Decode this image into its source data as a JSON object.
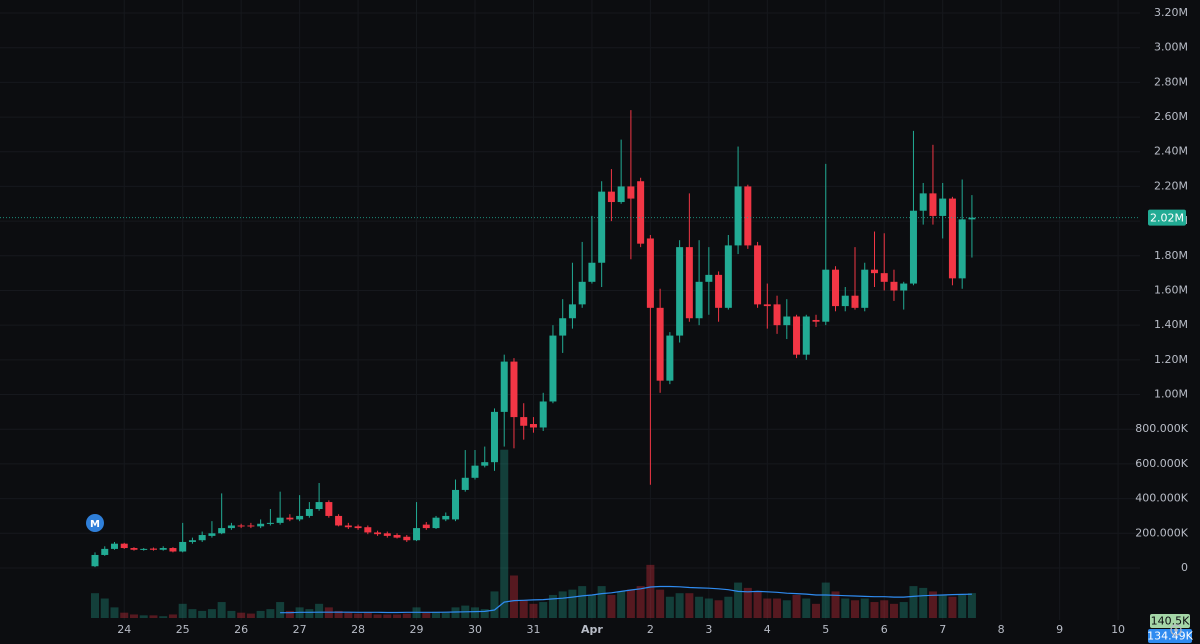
{
  "chart_data": {
    "type": "candlestick",
    "marker_label": "M",
    "up_color": "#22ab94",
    "down_color": "#f23645",
    "volume_up_color": "rgba(34,171,148,0.32)",
    "volume_down_color": "rgba(242,54,69,0.32)",
    "ma_color": "#2f8bf0",
    "grid": true,
    "xlim": [
      -51,
      417
    ],
    "ylim": [
      -300000,
      3275000
    ],
    "volume_ylim": [
      0,
      3500000
    ],
    "xticks": [
      {
        "value": 0,
        "label": "24"
      },
      {
        "value": 24,
        "label": "25"
      },
      {
        "value": 48,
        "label": "26"
      },
      {
        "value": 72,
        "label": "27"
      },
      {
        "value": 96,
        "label": "28"
      },
      {
        "value": 120,
        "label": "29"
      },
      {
        "value": 144,
        "label": "30"
      },
      {
        "value": 168,
        "label": "31"
      },
      {
        "value": 192,
        "label": "Apr"
      },
      {
        "value": 216,
        "label": "2"
      },
      {
        "value": 240,
        "label": "3"
      },
      {
        "value": 264,
        "label": "4"
      },
      {
        "value": 288,
        "label": "5"
      },
      {
        "value": 312,
        "label": "6"
      },
      {
        "value": 336,
        "label": "7"
      },
      {
        "value": 360,
        "label": "8"
      },
      {
        "value": 384,
        "label": "9"
      },
      {
        "value": 408,
        "label": "10"
      }
    ],
    "yticks": [
      0,
      {
        "value": 200000,
        "label": "200.000K"
      },
      {
        "value": 400000,
        "label": "400.000K"
      },
      {
        "value": 600000,
        "label": "600.000K"
      },
      {
        "value": 800000,
        "label": "800.000K"
      },
      {
        "value": 1000000,
        "label": "1.00M"
      },
      {
        "value": 1200000,
        "label": "1.20M"
      },
      {
        "value": 1400000,
        "label": "1.40M"
      },
      {
        "value": 1600000,
        "label": "1.60M"
      },
      {
        "value": 1800000,
        "label": "1.80M"
      },
      {
        "value": 2000000,
        "label": "2.00M"
      },
      {
        "value": 2200000,
        "label": "2.20M"
      },
      {
        "value": 2400000,
        "label": "2.40M"
      },
      {
        "value": 2600000,
        "label": "2.60M"
      },
      {
        "value": 2800000,
        "label": "2.80M"
      },
      {
        "value": 3000000,
        "label": "3.00M"
      },
      {
        "value": 3200000,
        "label": "3.20M"
      }
    ],
    "last_price": {
      "value": 2020000,
      "label": "2.02M"
    },
    "last_volume": {
      "value": 140500,
      "label": "140.5K"
    },
    "last_volume_ma": {
      "value": 134490,
      "label": "134.49K"
    },
    "x": [
      -12,
      -8,
      -4,
      0,
      4,
      8,
      12,
      16,
      20,
      24,
      28,
      32,
      36,
      40,
      44,
      48,
      52,
      56,
      60,
      64,
      68,
      72,
      76,
      80,
      84,
      88,
      92,
      96,
      100,
      104,
      108,
      112,
      116,
      120,
      124,
      128,
      132,
      136,
      140,
      144,
      148,
      152,
      156,
      160,
      164,
      168,
      172,
      176,
      180,
      184,
      188,
      192,
      196,
      200,
      204,
      208,
      212,
      216,
      220,
      224,
      228,
      232,
      236,
      240,
      244,
      248,
      252,
      256,
      260,
      264,
      268,
      272,
      276,
      280,
      284,
      288,
      292,
      296,
      300,
      304,
      308,
      312,
      316,
      320,
      324,
      328,
      332,
      336,
      340,
      344,
      348
    ],
    "open": [
      10000,
      75000,
      110000,
      140000,
      115000,
      105000,
      112000,
      105000,
      115000,
      95000,
      150000,
      160000,
      185000,
      200000,
      230000,
      245000,
      245000,
      240000,
      255000,
      260000,
      290000,
      280000,
      300000,
      340000,
      380000,
      300000,
      245000,
      240000,
      235000,
      205000,
      200000,
      190000,
      180000,
      160000,
      250000,
      230000,
      280000,
      280000,
      450000,
      520000,
      590000,
      610000,
      900000,
      1190000,
      870000,
      830000,
      810000,
      960000,
      1340000,
      1440000,
      1520000,
      1650000,
      1760000,
      2170000,
      2110000,
      2200000,
      2230000,
      1900000,
      1500000,
      1080000,
      1340000,
      1850000,
      1440000,
      1650000,
      1690000,
      1500000,
      1860000,
      2200000,
      1860000,
      1520000,
      1520000,
      1400000,
      1450000,
      1230000,
      1430000,
      1420000,
      1720000,
      1510000,
      1570000,
      1500000,
      1720000,
      1700000,
      1650000,
      1600000,
      1640000,
      2060000,
      2160000,
      2030000,
      2130000,
      1670000,
      2010000
    ],
    "high": [
      90000,
      125000,
      150000,
      145000,
      120000,
      115000,
      118000,
      125000,
      120000,
      260000,
      175000,
      210000,
      270000,
      430000,
      260000,
      255000,
      260000,
      280000,
      340000,
      440000,
      310000,
      420000,
      380000,
      490000,
      390000,
      310000,
      260000,
      250000,
      245000,
      215000,
      210000,
      200000,
      190000,
      380000,
      265000,
      300000,
      320000,
      510000,
      680000,
      680000,
      700000,
      920000,
      1230000,
      1210000,
      950000,
      870000,
      1010000,
      1400000,
      1550000,
      1760000,
      1880000,
      2030000,
      2230000,
      2300000,
      2470000,
      2640000,
      2250000,
      1920000,
      1610000,
      1360000,
      1890000,
      2160000,
      1890000,
      1850000,
      1710000,
      1920000,
      2430000,
      2210000,
      1880000,
      1640000,
      1570000,
      1550000,
      1460000,
      1460000,
      1460000,
      2330000,
      1740000,
      1620000,
      1850000,
      1760000,
      1940000,
      1930000,
      1720000,
      1650000,
      2520000,
      2220000,
      2440000,
      2220000,
      2140000,
      2240000,
      2150000
    ],
    "low": [
      5000,
      70000,
      105000,
      110000,
      100000,
      100000,
      100000,
      100000,
      90000,
      90000,
      140000,
      150000,
      175000,
      195000,
      220000,
      230000,
      230000,
      230000,
      245000,
      250000,
      270000,
      270000,
      290000,
      330000,
      290000,
      240000,
      225000,
      220000,
      195000,
      185000,
      175000,
      170000,
      150000,
      155000,
      220000,
      225000,
      270000,
      270000,
      440000,
      510000,
      580000,
      560000,
      700000,
      690000,
      740000,
      780000,
      790000,
      950000,
      1240000,
      1380000,
      1500000,
      1640000,
      1620000,
      2000000,
      2100000,
      1780000,
      1850000,
      480000,
      1010000,
      1060000,
      1300000,
      1420000,
      1400000,
      1460000,
      1420000,
      1490000,
      1810000,
      1840000,
      1500000,
      1380000,
      1350000,
      1320000,
      1210000,
      1200000,
      1390000,
      1400000,
      1480000,
      1480000,
      1490000,
      1480000,
      1620000,
      1600000,
      1540000,
      1490000,
      1630000,
      1980000,
      1980000,
      1900000,
      1630000,
      1610000,
      1790000
    ],
    "close": [
      75000,
      110000,
      140000,
      115000,
      105000,
      110000,
      105000,
      115000,
      95000,
      150000,
      160000,
      190000,
      200000,
      230000,
      245000,
      240000,
      240000,
      255000,
      260000,
      290000,
      280000,
      300000,
      340000,
      380000,
      300000,
      245000,
      235000,
      230000,
      205000,
      195000,
      185000,
      175000,
      160000,
      230000,
      230000,
      290000,
      300000,
      450000,
      520000,
      590000,
      610000,
      900000,
      1190000,
      870000,
      820000,
      810000,
      960000,
      1340000,
      1440000,
      1520000,
      1650000,
      1760000,
      2170000,
      2110000,
      2200000,
      2130000,
      1870000,
      1500000,
      1080000,
      1340000,
      1850000,
      1440000,
      1650000,
      1690000,
      1500000,
      1860000,
      2200000,
      1860000,
      1520000,
      1510000,
      1400000,
      1450000,
      1230000,
      1450000,
      1420000,
      1720000,
      1510000,
      1570000,
      1500000,
      1720000,
      1700000,
      1650000,
      1600000,
      1640000,
      2060000,
      2160000,
      2030000,
      2130000,
      1670000,
      2010000,
      2020000
    ],
    "volume": [
      140000,
      110000,
      60000,
      30000,
      20000,
      15000,
      15000,
      10000,
      20000,
      80000,
      50000,
      40000,
      50000,
      90000,
      40000,
      30000,
      25000,
      40000,
      50000,
      90000,
      40000,
      60000,
      50000,
      80000,
      60000,
      40000,
      30000,
      25000,
      30000,
      20000,
      20000,
      20000,
      25000,
      60000,
      30000,
      35000,
      30000,
      60000,
      70000,
      60000,
      50000,
      150000,
      950000,
      240000,
      100000,
      80000,
      90000,
      130000,
      150000,
      160000,
      180000,
      130000,
      180000,
      130000,
      150000,
      160000,
      180000,
      300000,
      160000,
      120000,
      140000,
      140000,
      120000,
      110000,
      100000,
      120000,
      200000,
      170000,
      150000,
      110000,
      110000,
      100000,
      130000,
      110000,
      80000,
      200000,
      150000,
      110000,
      100000,
      110000,
      90000,
      100000,
      80000,
      90000,
      180000,
      170000,
      150000,
      130000,
      120000,
      130000,
      140500
    ],
    "volume_ma": [
      null,
      null,
      null,
      null,
      null,
      null,
      null,
      null,
      null,
      null,
      null,
      null,
      null,
      null,
      null,
      null,
      null,
      null,
      null,
      30000,
      30000,
      32000,
      32000,
      33000,
      33000,
      33000,
      33000,
      32000,
      32000,
      32000,
      31000,
      31000,
      32000,
      32000,
      32000,
      32000,
      33000,
      34000,
      35000,
      36000,
      37000,
      45000,
      90000,
      98000,
      100000,
      102000,
      104000,
      108000,
      112000,
      118000,
      125000,
      130000,
      138000,
      142000,
      150000,
      158000,
      165000,
      175000,
      178000,
      178000,
      176000,
      172000,
      170000,
      168000,
      165000,
      160000,
      150000,
      148000,
      150000,
      148000,
      145000,
      140000,
      138000,
      135000,
      130000,
      130000,
      128000,
      126000,
      124000,
      122000,
      120000,
      120000,
      118000,
      118000,
      122000,
      126000,
      128000,
      130000,
      132000,
      133000,
      134490
    ]
  }
}
